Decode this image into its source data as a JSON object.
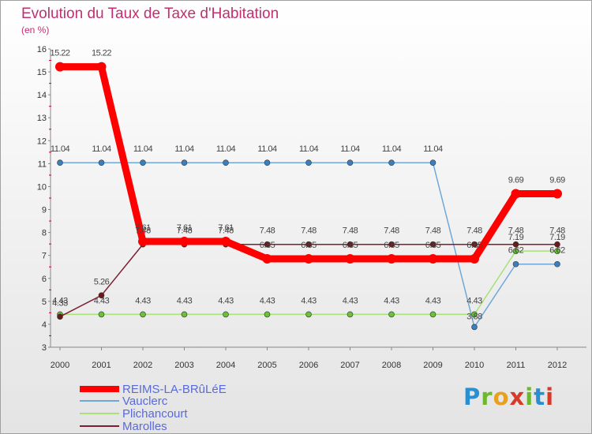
{
  "header": {
    "title": "Evolution du Taux de Taxe d'Habitation",
    "subtitle": "(en %)"
  },
  "logo": {
    "letters": [
      "P",
      "r",
      "o",
      "x",
      "i",
      "t",
      "i"
    ],
    "colors": [
      "#2a8fd0",
      "#6db82e",
      "#e8a020",
      "#d83a2a",
      "#6db82e",
      "#2a8fd0",
      "#d83a2a"
    ]
  },
  "chart_data": {
    "type": "line",
    "title": "Evolution du Taux de Taxe d'Habitation",
    "ylabel": "(en %)",
    "x": [
      "2000",
      "2001",
      "2002",
      "2003",
      "2004",
      "2005",
      "2006",
      "2007",
      "2008",
      "2009",
      "2010",
      "2011",
      "2012"
    ],
    "ylim": [
      3,
      16
    ],
    "yticks": [
      "3",
      "4",
      "5",
      "6",
      "7",
      "8",
      "9",
      "10",
      "11",
      "12",
      "13",
      "14",
      "15",
      "16"
    ],
    "grid": false,
    "legend_position": "bottom-left",
    "series": [
      {
        "name": "REIMS-LA-BRûLéE",
        "color": "#ff0000",
        "highlight": true,
        "values": [
          15.22,
          15.22,
          7.61,
          7.61,
          7.61,
          6.85,
          6.85,
          6.85,
          6.85,
          6.85,
          6.85,
          9.69,
          9.69
        ],
        "labels": [
          "15.22",
          "15.22",
          "7.61",
          "7.61",
          "7.61",
          "6.85",
          "6.85",
          "6.85",
          "6.85",
          "6.85",
          "6.85",
          "9.69",
          "9.69"
        ]
      },
      {
        "name": "Vauclerc",
        "color": "#6fa8d8",
        "marker": "#3a7fc0",
        "values": [
          11.04,
          11.04,
          11.04,
          11.04,
          11.04,
          11.04,
          11.04,
          11.04,
          11.04,
          11.04,
          3.88,
          6.62,
          6.62
        ],
        "labels": [
          "11.04",
          "11.04",
          "11.04",
          "11.04",
          "11.04",
          "11.04",
          "11.04",
          "11.04",
          "11.04",
          "11.04",
          "3.88",
          "6.62",
          "6.62"
        ]
      },
      {
        "name": "Plichancourt",
        "color": "#a8e07a",
        "marker": "#6cc03a",
        "values": [
          4.43,
          4.43,
          4.43,
          4.43,
          4.43,
          4.43,
          4.43,
          4.43,
          4.43,
          4.43,
          4.43,
          7.19,
          7.19
        ],
        "labels": [
          "4.43",
          "4.43",
          "4.43",
          "4.43",
          "4.43",
          "4.43",
          "4.43",
          "4.43",
          "4.43",
          "4.43",
          "4.43",
          "7.19",
          "7.19"
        ]
      },
      {
        "name": "Marolles",
        "color": "#7a2030",
        "marker": "#6a1a1a",
        "values": [
          4.33,
          5.26,
          7.48,
          7.48,
          7.48,
          7.48,
          7.48,
          7.48,
          7.48,
          7.48,
          7.48,
          7.48,
          7.48
        ],
        "labels": [
          "4.33",
          "5.26",
          "7.48",
          "7.48",
          "7.48",
          "7.48",
          "7.48",
          "7.48",
          "7.48",
          "7.48",
          "7.48",
          "7.48",
          "7.48"
        ]
      }
    ]
  }
}
